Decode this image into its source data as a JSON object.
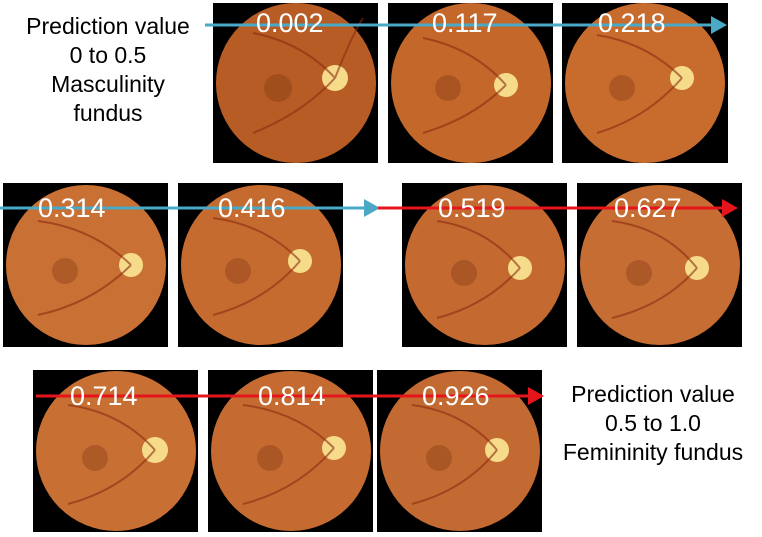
{
  "captions": {
    "top_left": [
      "Prediction value",
      "0 to 0.5",
      "Masculinity",
      "fundus"
    ],
    "bottom_right": [
      "Prediction value",
      "0.5 to 1.0",
      "Femininity fundus"
    ]
  },
  "prediction_values": [
    "0.002",
    "0.117",
    "0.218",
    "0.314",
    "0.416",
    "0.519",
    "0.627",
    "0.714",
    "0.814",
    "0.926"
  ],
  "colors": {
    "masculinity_arrow": "#4aa9c7",
    "femininity_arrow": "#e6141b",
    "fundus_base": "#c4672a",
    "optic_disc": "#f6dc8a"
  }
}
